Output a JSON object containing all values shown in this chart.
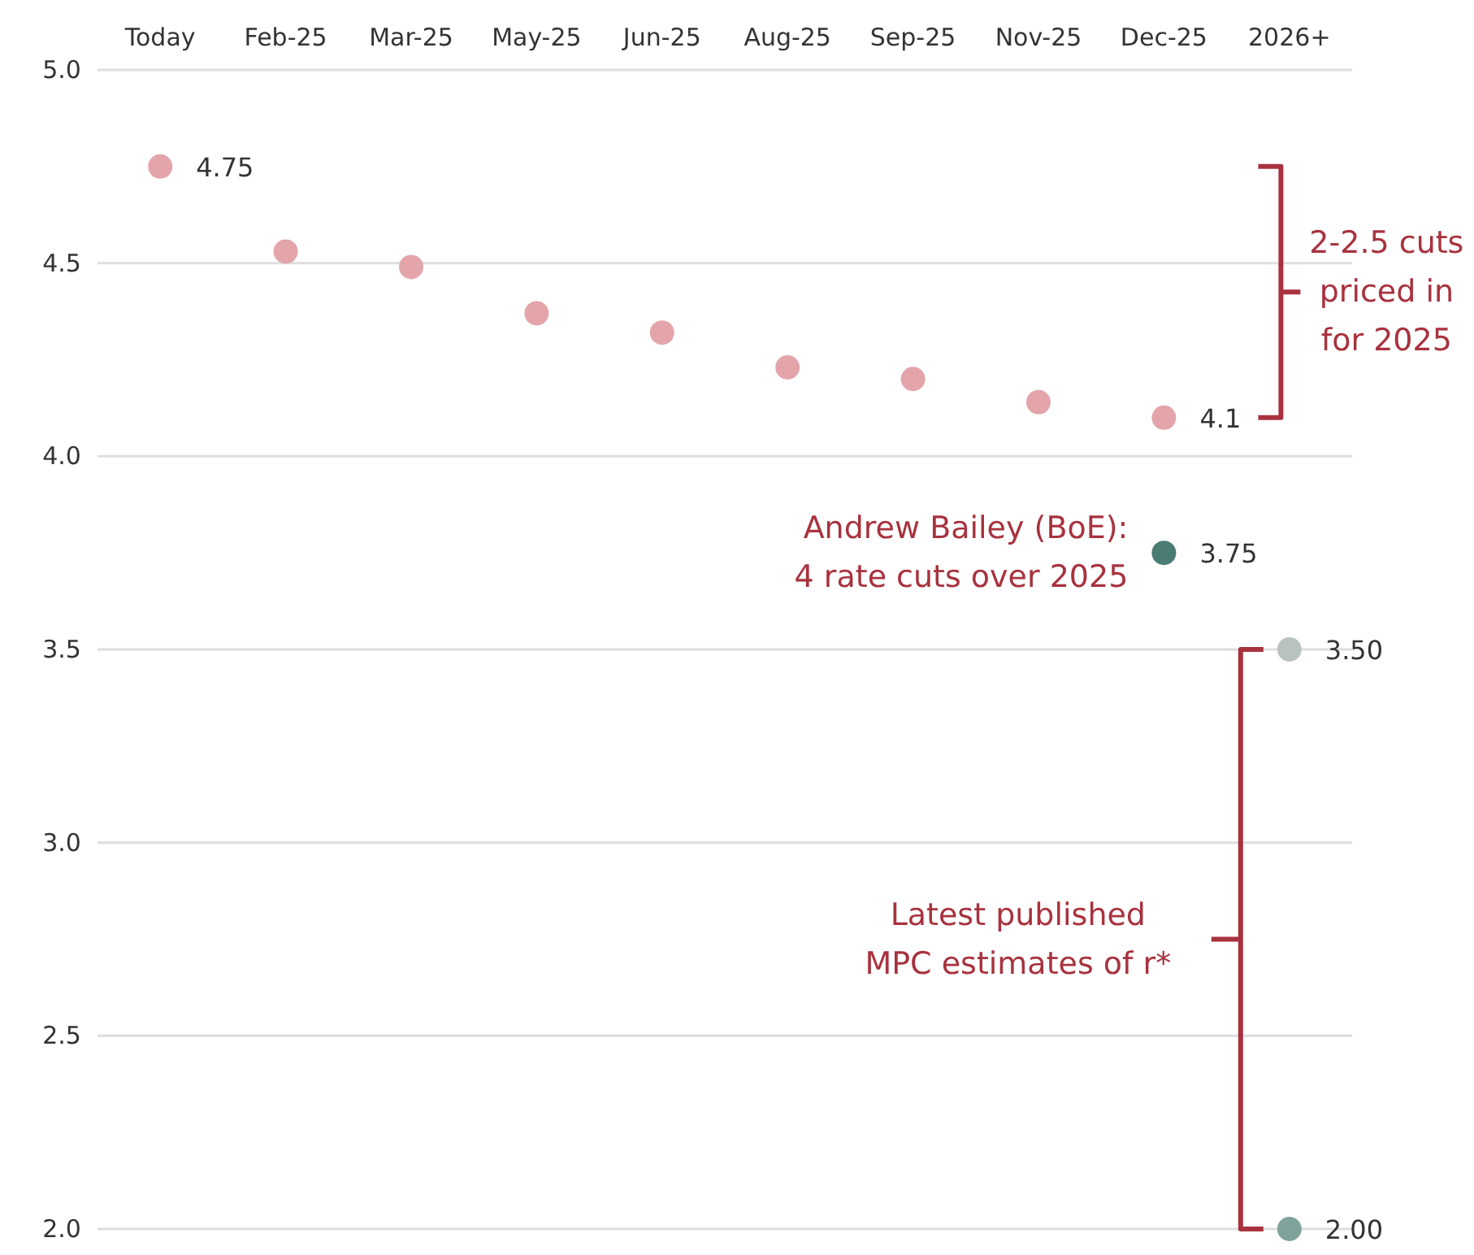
{
  "chart_data": {
    "type": "scatter",
    "categories": [
      "Today",
      "Feb-25",
      "Mar-25",
      "May-25",
      "Jun-25",
      "Aug-25",
      "Sep-25",
      "Nov-25",
      "Dec-25",
      "2026+"
    ],
    "series": [
      {
        "color": "#e3a5aa",
        "values": [
          4.75,
          4.53,
          4.49,
          4.37,
          4.32,
          4.23,
          4.2,
          4.14,
          4.1,
          null
        ],
        "value_labels": [
          "4.75",
          null,
          null,
          null,
          null,
          null,
          null,
          null,
          "4.1",
          null
        ]
      },
      {
        "color": "#4a7c74",
        "x": [
          "Dec-25"
        ],
        "values": [
          3.75
        ],
        "value_labels": [
          "3.75"
        ]
      },
      {
        "colors": [
          "#b9c3bd",
          "#7fa39b"
        ],
        "x": [
          "2026+",
          "2026+"
        ],
        "values": [
          3.5,
          2.0
        ],
        "value_labels": [
          "3.50",
          "2.00"
        ]
      }
    ],
    "ylim": [
      2.0,
      5.0
    ],
    "yticks": [
      {
        "value": 2.0,
        "label": "2.0"
      },
      {
        "value": 2.5,
        "label": "2.5"
      },
      {
        "value": 3.0,
        "label": "3.0"
      },
      {
        "value": 3.5,
        "label": "3.5"
      },
      {
        "value": 4.0,
        "label": "4.0"
      },
      {
        "value": 4.5,
        "label": "4.5"
      },
      {
        "value": 5.0,
        "label": "5.0"
      }
    ],
    "grid": "y",
    "marker": "circle",
    "annotations": [
      {
        "text": "Andrew Bailey (BoE):\n4 rate cuts over 2025",
        "x": "Dec-25",
        "y": 3.75
      },
      "2-2.5 cuts\npriced in\nfor 2025",
      "Latest published\nMPC estimates of r*"
    ]
  }
}
